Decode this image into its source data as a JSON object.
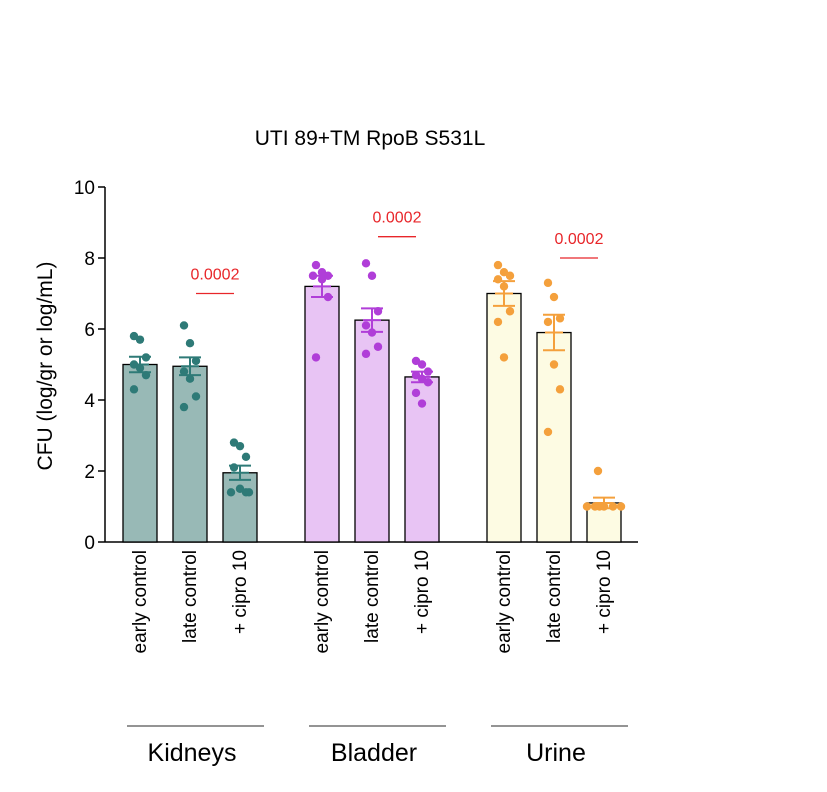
{
  "chart_data": {
    "type": "bar",
    "title": "UTI 89+TM RpoB  S531L",
    "ylabel": "CFU (log/gr or log/mL)",
    "ylim": [
      0,
      10
    ],
    "yticks": [
      0,
      2,
      4,
      6,
      8,
      10
    ],
    "groups": [
      {
        "name": "Kidneys",
        "fill": "#98b9b6",
        "point_color": "#2e7a77",
        "bars": [
          {
            "category": "early control",
            "mean": 5.0,
            "sem": 0.22,
            "points": [
              5.8,
              5.7,
              5.2,
              5.0,
              4.9,
              4.7,
              4.3
            ]
          },
          {
            "category": "late control",
            "mean": 4.95,
            "sem": 0.25,
            "points": [
              6.1,
              5.6,
              5.1,
              4.8,
              4.6,
              4.1,
              3.8
            ]
          },
          {
            "category": "+ cipro 10",
            "mean": 1.95,
            "sem": 0.2,
            "points": [
              2.8,
              2.7,
              2.4,
              2.1,
              1.5,
              1.4,
              1.4,
              1.4
            ]
          }
        ],
        "pvalue": {
          "label": "0.0002",
          "from": 1,
          "to": 2,
          "y": 7.0
        }
      },
      {
        "name": "Bladder",
        "fill": "#e8c4f4",
        "point_color": "#b03ed8",
        "bars": [
          {
            "category": "early control",
            "mean": 7.2,
            "sem": 0.3,
            "points": [
              7.8,
              7.6,
              7.5,
              7.5,
              7.4,
              6.9,
              5.2
            ]
          },
          {
            "category": "late control",
            "mean": 6.25,
            "sem": 0.33,
            "points": [
              7.85,
              7.5,
              6.5,
              6.1,
              5.9,
              5.5,
              5.3
            ]
          },
          {
            "category": "+ cipro 10",
            "mean": 4.65,
            "sem": 0.15,
            "points": [
              5.1,
              5.0,
              4.8,
              4.7,
              4.6,
              4.5,
              4.2,
              3.9
            ]
          }
        ],
        "pvalue": {
          "label": "0.0002",
          "from": 1,
          "to": 2,
          "y": 8.6
        }
      },
      {
        "name": "Urine",
        "fill": "#fdfbe3",
        "point_color": "#f4a03c",
        "bars": [
          {
            "category": "early control",
            "mean": 7.0,
            "sem": 0.35,
            "points": [
              7.8,
              7.6,
              7.5,
              7.4,
              7.2,
              6.5,
              6.2,
              5.2
            ]
          },
          {
            "category": "late control",
            "mean": 5.9,
            "sem": 0.5,
            "points": [
              7.3,
              6.9,
              6.3,
              6.2,
              5.0,
              4.3,
              3.1
            ]
          },
          {
            "category": "+ cipro 10",
            "mean": 1.1,
            "sem": 0.15,
            "points": [
              2.0,
              1.0,
              1.0,
              1.0,
              1.0,
              1.0,
              1.0
            ]
          }
        ],
        "pvalue": {
          "label": "0.0002",
          "from": 1,
          "to": 2,
          "y": 8.0
        }
      }
    ],
    "grid": false,
    "legend": "none"
  }
}
